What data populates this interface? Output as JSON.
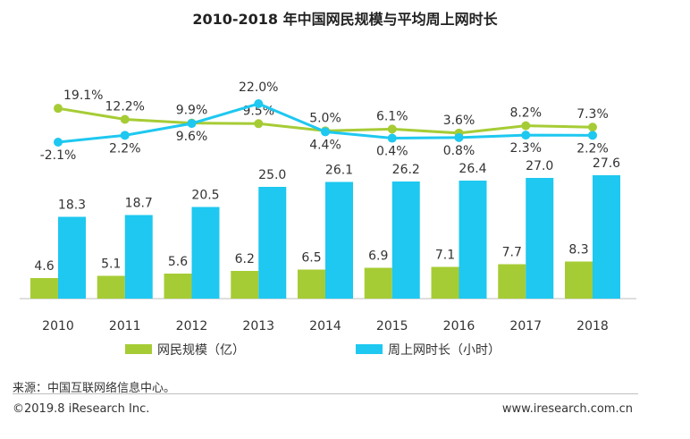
{
  "chart_data": {
    "type": "bar",
    "title": "2010-2018 年中国网民规模与平均周上网时长",
    "categories": [
      "2010",
      "2011",
      "2012",
      "2013",
      "2014",
      "2015",
      "2016",
      "2017",
      "2018"
    ],
    "series": [
      {
        "name": "网民规模（亿）",
        "kind": "bar",
        "color": "#a6cc35",
        "values": [
          4.6,
          5.1,
          5.6,
          6.2,
          6.5,
          6.9,
          7.1,
          7.7,
          8.3
        ],
        "labels": [
          "4.6",
          "5.1",
          "5.6",
          "6.2",
          "6.5",
          "6.9",
          "7.1",
          "7.7",
          "8.3"
        ]
      },
      {
        "name": "周上网时长（小时）",
        "kind": "bar",
        "color": "#1ec8f0",
        "values": [
          18.3,
          18.7,
          20.5,
          25.0,
          26.1,
          26.2,
          26.4,
          27.0,
          27.6
        ],
        "labels": [
          "18.3",
          "18.7",
          "20.5",
          "25.0",
          "26.1",
          "26.2",
          "26.4",
          "27.0",
          "27.6"
        ]
      },
      {
        "kind": "line",
        "color": "#a6cc35",
        "values": [
          19.1,
          12.2,
          9.9,
          9.5,
          5.0,
          6.1,
          3.6,
          8.2,
          7.3
        ],
        "labels": [
          "19.1%",
          "12.2%",
          "9.9%",
          "9.5%",
          "5.0%",
          "6.1%",
          "3.6%",
          "8.2%",
          "7.3%"
        ]
      },
      {
        "kind": "line",
        "color": "#1ec8f0",
        "values": [
          -2.1,
          2.2,
          9.6,
          22.0,
          4.4,
          0.4,
          0.8,
          2.3,
          2.2
        ],
        "labels": [
          "-2.1%",
          "2.2%",
          "9.6%",
          "22.0%",
          "4.4%",
          "0.4%",
          "0.8%",
          "2.3%",
          "2.2%"
        ]
      }
    ],
    "legend": "bottom",
    "grid": false
  },
  "footer": {
    "source": "来源：中国互联网络信息中心。",
    "copyright": "©2019.8 iResearch Inc.",
    "website": "www.iresearch.com.cn"
  }
}
